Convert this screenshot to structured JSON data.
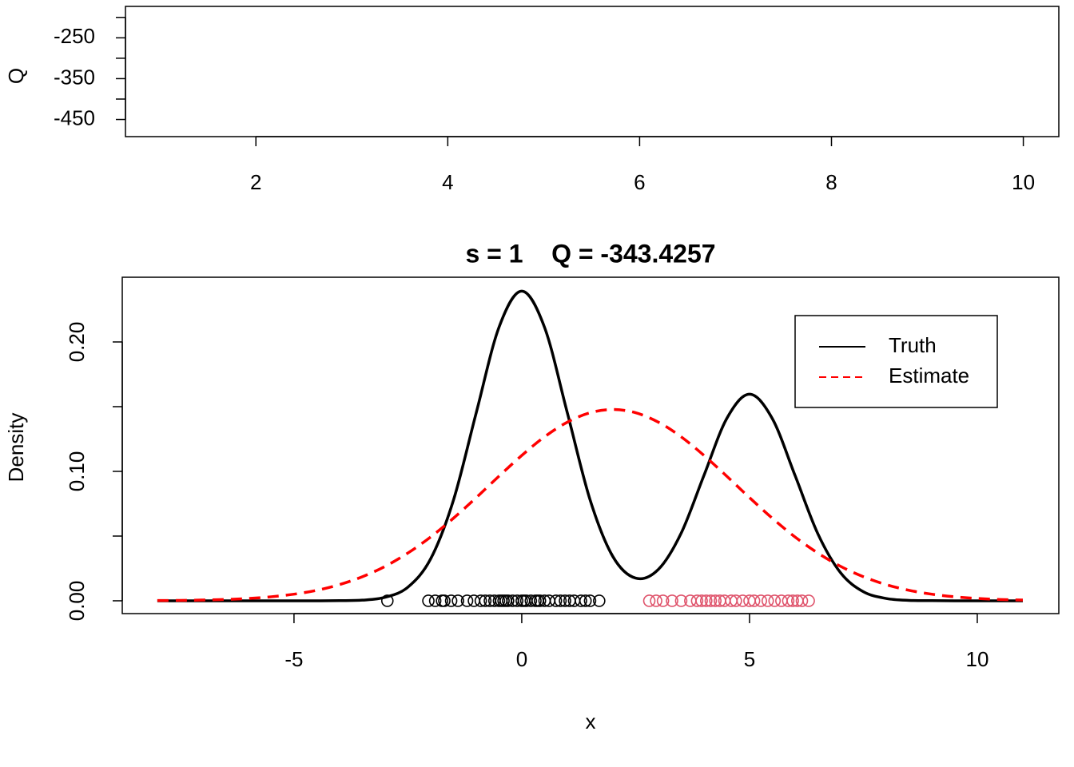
{
  "chart_data": [
    {
      "type": "line",
      "ylabel": "Q",
      "xlim": [
        0.64,
        10.37
      ],
      "xticks": [
        2,
        4,
        6,
        8,
        10
      ],
      "ylim": [
        -492,
        -173
      ],
      "yticks": [
        -250,
        -350,
        -450
      ],
      "minor_yticks": [
        -200,
        -300,
        -400
      ],
      "ytick_orientation": "horizontal",
      "x": [],
      "series": []
    },
    {
      "type": "line",
      "title": "s = 1    Q = -343.4257",
      "xlabel": "x",
      "ylabel": "Density",
      "xlim": [
        -8.77,
        11.79
      ],
      "xticks": [
        -5,
        0,
        5,
        10
      ],
      "ylim": [
        -0.0099,
        0.25
      ],
      "yticks": [
        {
          "value": 0,
          "label": "0.00"
        },
        {
          "value": 0.1,
          "label": "0.10"
        },
        {
          "value": 0.2,
          "label": "0.20"
        }
      ],
      "minor_yticks": [
        0.05,
        0.15
      ],
      "ytick_orientation": "vertical",
      "legend": "top-right",
      "x": [
        -8,
        -7.5,
        -7,
        -6.5,
        -6,
        -5.5,
        -5,
        -4.5,
        -4,
        -3.5,
        -3,
        -2.5,
        -2,
        -1.5,
        -1,
        -0.5,
        0,
        0.5,
        1,
        1.5,
        2,
        2.5,
        3,
        3.5,
        4,
        4.5,
        5,
        5.5,
        6,
        6.5,
        7,
        7.5,
        8,
        8.5,
        9,
        9.5,
        10,
        10.5,
        11
      ],
      "series": [
        {
          "name": "Truth",
          "color": "#000000",
          "dash": "solid",
          "values": [
            0,
            0,
            0,
            0,
            0,
            0,
            0,
            0,
            0.0001,
            0.0005,
            0.0027,
            0.0105,
            0.0324,
            0.0777,
            0.1452,
            0.2113,
            0.2393,
            0.2113,
            0.1453,
            0.078,
            0.0342,
            0.0175,
            0.0243,
            0.0523,
            0.0969,
            0.1408,
            0.1596,
            0.1408,
            0.0968,
            0.0518,
            0.0216,
            0.007,
            0.0018,
            0.0003,
            0.0001,
            0,
            0,
            0,
            0
          ]
        },
        {
          "name": "Estimate",
          "color": "#ff0000",
          "dash": "dashed",
          "values": [
            0.0002,
            0.0003,
            0.0006,
            0.001,
            0.0018,
            0.0031,
            0.0051,
            0.0081,
            0.0125,
            0.0186,
            0.0266,
            0.0369,
            0.0493,
            0.0638,
            0.0797,
            0.0963,
            0.1123,
            0.1267,
            0.138,
            0.1453,
            0.1478,
            0.1453,
            0.138,
            0.1267,
            0.1123,
            0.0963,
            0.0797,
            0.0638,
            0.0493,
            0.0369,
            0.0266,
            0.0186,
            0.0125,
            0.0081,
            0.0051,
            0.0031,
            0.0018,
            0.001,
            0.0006
          ]
        }
      ],
      "points": [
        {
          "color": "#000000",
          "x": [
            -2.95,
            -2.05,
            -1.9,
            -1.75,
            -1.7,
            -1.55,
            -1.4,
            -1.2,
            -1.05,
            -0.9,
            -0.8,
            -0.7,
            -0.6,
            -0.5,
            -0.45,
            -0.4,
            -0.35,
            -0.3,
            -0.2,
            -0.1,
            0,
            0.05,
            0.1,
            0.2,
            0.3,
            0.35,
            0.4,
            0.5,
            0.6,
            0.75,
            0.85,
            0.95,
            1.05,
            1.15,
            1.3,
            1.4,
            1.5,
            1.7
          ],
          "values": [
            0,
            0,
            0,
            0,
            0,
            0,
            0,
            0,
            0,
            0,
            0,
            0,
            0,
            0,
            0,
            0,
            0,
            0,
            0,
            0,
            0,
            0,
            0,
            0,
            0,
            0,
            0,
            0,
            0,
            0,
            0,
            0,
            0,
            0,
            0,
            0,
            0,
            0
          ]
        },
        {
          "color": "#df536b",
          "x": [
            2.8,
            2.95,
            3.1,
            3.3,
            3.5,
            3.7,
            3.85,
            3.95,
            4.05,
            4.15,
            4.25,
            4.35,
            4.45,
            4.6,
            4.7,
            4.85,
            5.0,
            5.1,
            5.25,
            5.4,
            5.55,
            5.7,
            5.85,
            5.95,
            6.05,
            6.15,
            6.3
          ],
          "values": [
            0,
            0,
            0,
            0,
            0,
            0,
            0,
            0,
            0,
            0,
            0,
            0,
            0,
            0,
            0,
            0,
            0,
            0,
            0,
            0,
            0,
            0,
            0,
            0,
            0,
            0,
            0
          ]
        }
      ]
    }
  ]
}
